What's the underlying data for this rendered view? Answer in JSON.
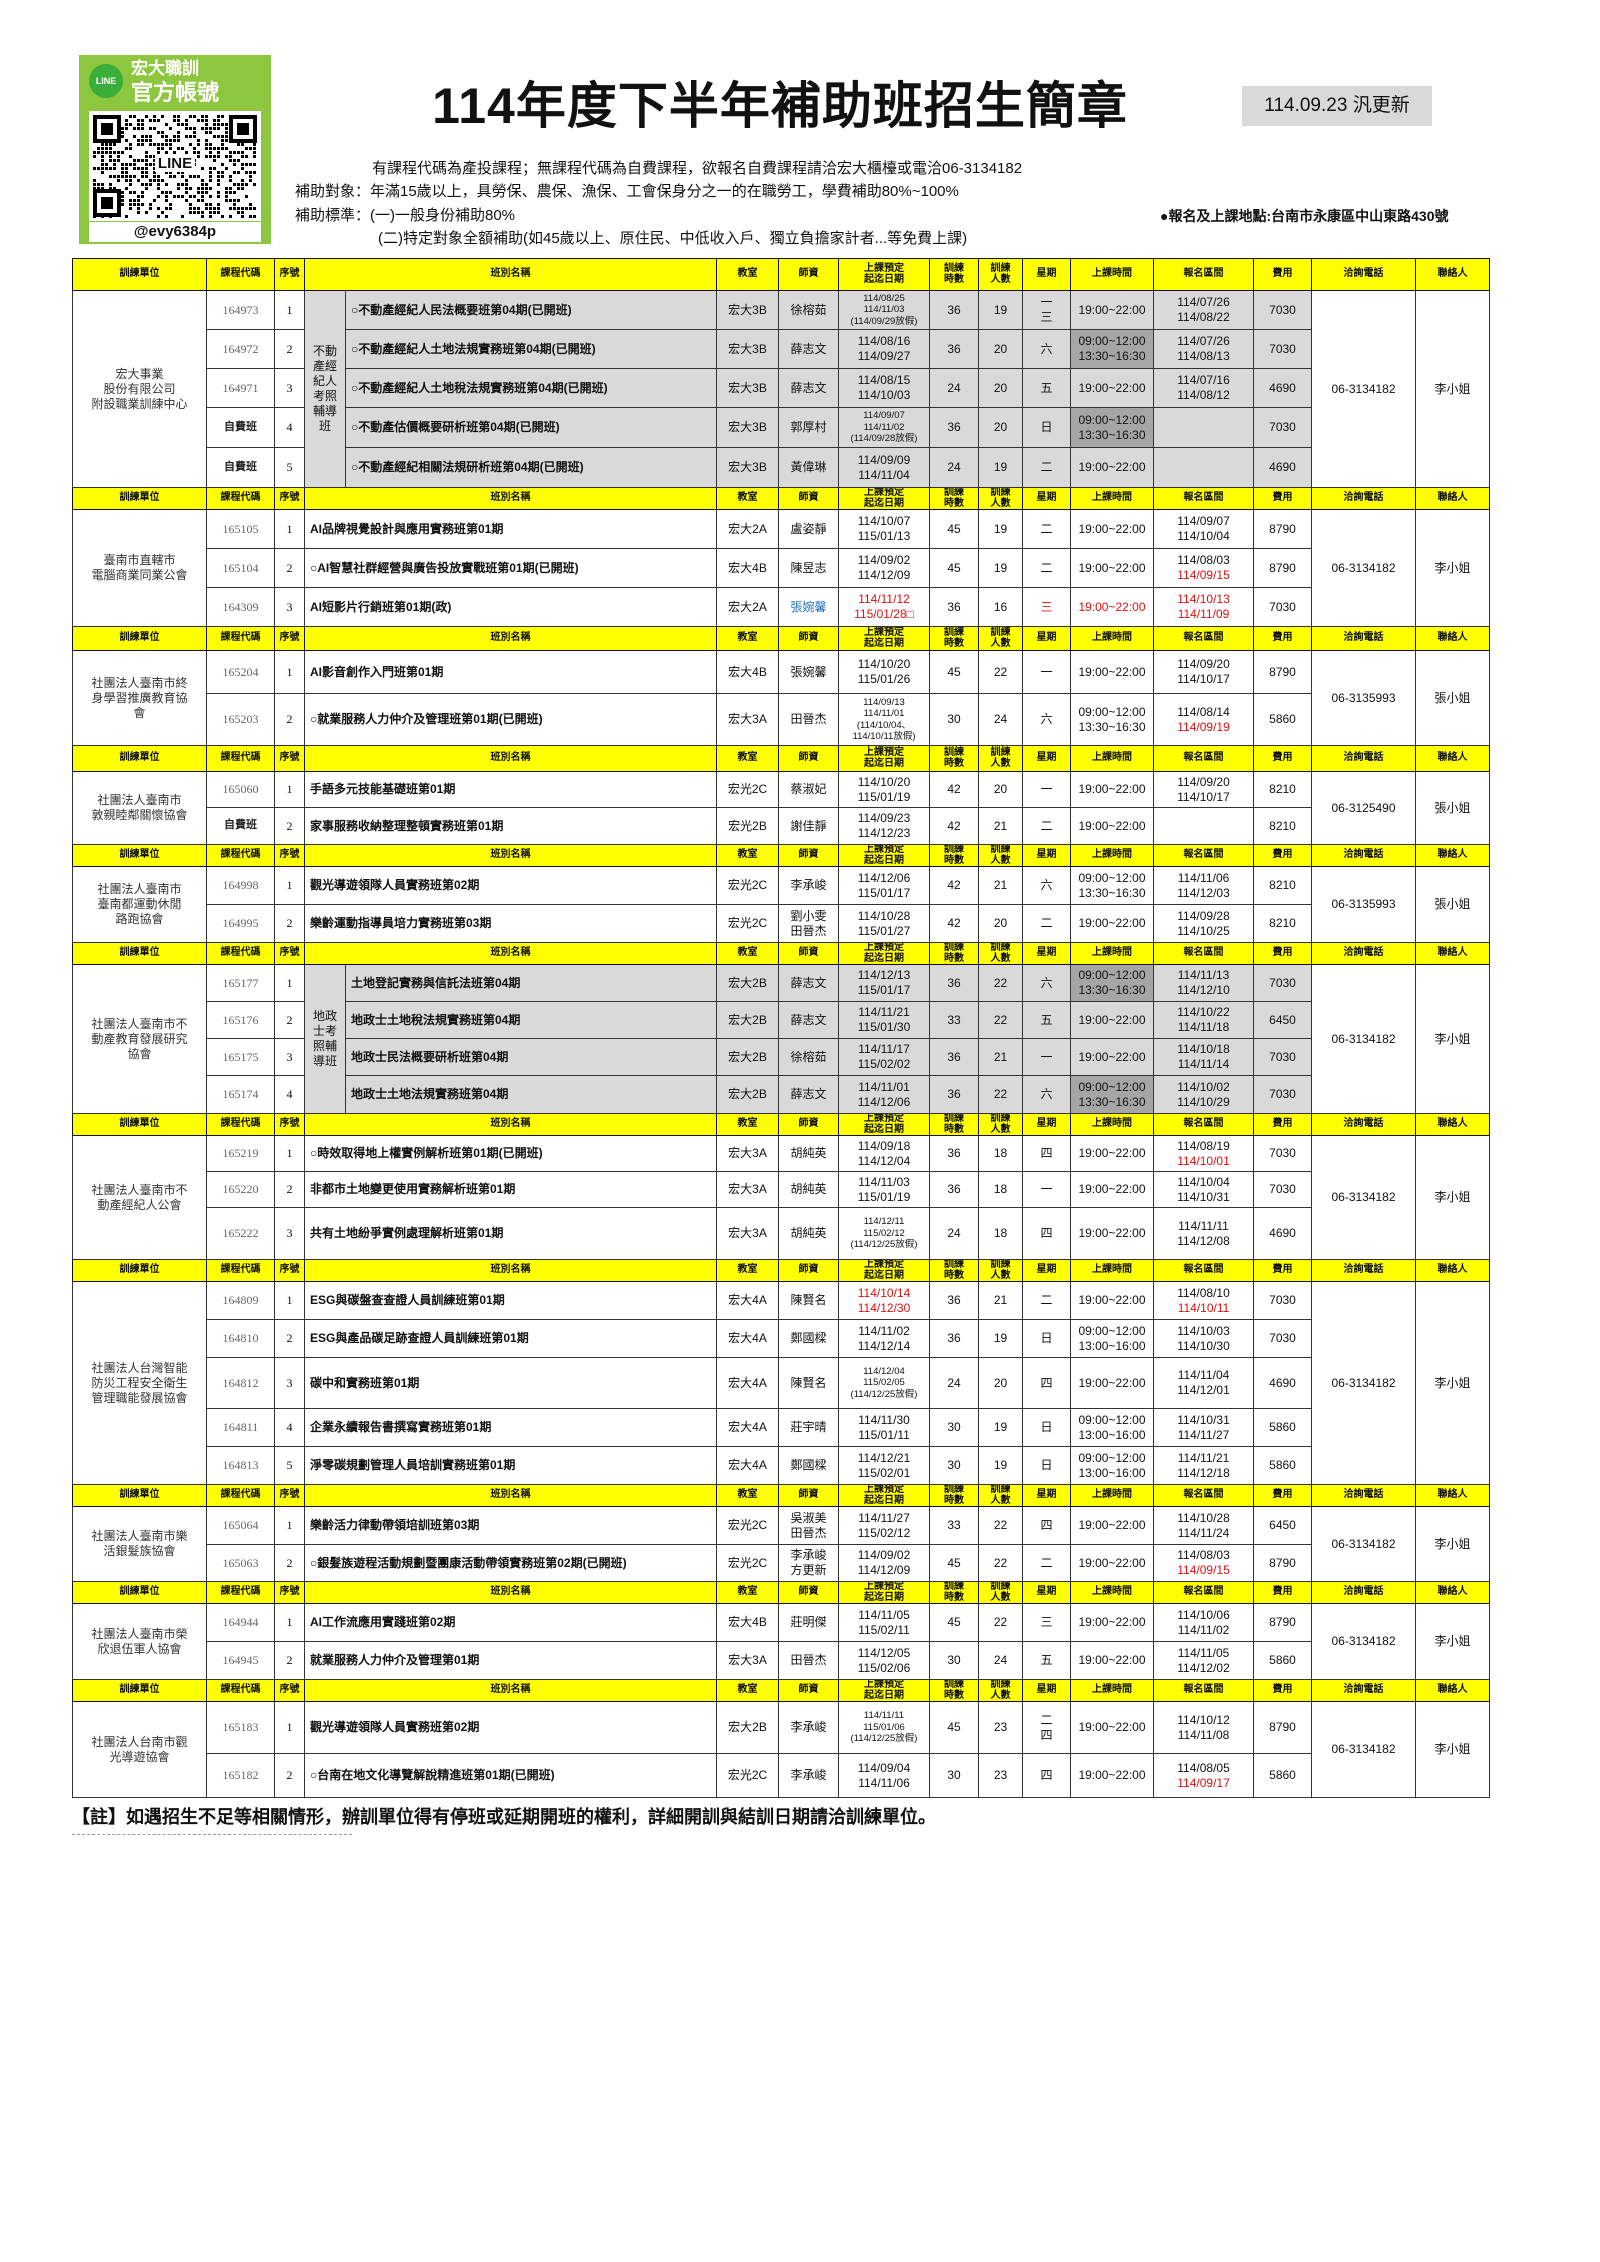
{
  "logo": {
    "line_badge": "LINE",
    "line1": "宏大職訓",
    "line2": "官方帳號",
    "qr_label": "LINE",
    "handle": "@evy6384p",
    "brand_color": "#8dc63f"
  },
  "header": {
    "title": "114年度下半年補助班招生簡章",
    "update": "114.09.23 汎更新",
    "info": [
      "有課程代碼為產投課程；無課程代碼為自費課程，欲報名自費課程請洽宏大櫃檯或電洽06-3134182",
      "補助對象：年滿15歲以上，具勞保、農保、漁保、工會保身分之一的在職勞工，學費補助80%~100%",
      "補助標準：(一)一般身份補助80%",
      "(二)特定對象全額補助(如45歲以上、原住民、中低收入戶、獨立負擔家計者...等免費上課)"
    ],
    "address": "●報名及上課地點:台南市永康區中山東路430號"
  },
  "colors": {
    "header_bg": "#ffff00",
    "shaded": "#d9d9d9",
    "time_shaded": "#a6a6a6",
    "alert": "#e01010",
    "teacher_blue": "#1f6fc0"
  },
  "table": {
    "headers": [
      "訓練單位",
      "課程代碼",
      "序號",
      "班別名稱",
      "教室",
      "師資",
      "上課預定\n起迄日期",
      "訓練\n時數",
      "訓練\n人數",
      "星期",
      "上課時間",
      "報名區間",
      "費用",
      "洽詢電話",
      "聯絡人"
    ],
    "groups": [
      {
        "unit": "宏大事業\n股份有限公司\n附設職業訓練中心",
        "phone": "06-3134182",
        "contact": "李小姐",
        "shaded": true,
        "sub": "不動\n產經\n紀人\n考照\n輔導\n班",
        "rows": [
          {
            "code": "164973",
            "seq": "1",
            "name": "○不動產經紀人民法概要班第04期(已開班)",
            "room": "宏大3B",
            "teacher": "徐榕茹",
            "dates": [
              "114/08/25",
              "114/11/03",
              "(114/09/29放假)"
            ],
            "hours": "36",
            "people": "19",
            "weekday": "一\n三",
            "time": "19:00~22:00",
            "reg": [
              "114/07/26",
              "114/08/22"
            ],
            "fee": "7030"
          },
          {
            "code": "164972",
            "seq": "2",
            "name": "○不動產經紀人土地法規實務班第04期(已開班)",
            "room": "宏大3B",
            "teacher": "薛志文",
            "dates": [
              "114/08/16",
              "114/09/27"
            ],
            "hours": "36",
            "people": "20",
            "weekday": "六",
            "time": "09:00~12:00\n13:30~16:30",
            "reg": [
              "114/07/26",
              "114/08/13"
            ],
            "fee": "7030"
          },
          {
            "code": "164971",
            "seq": "3",
            "name": "○不動產經紀人土地稅法規實務班第04期(已開班)",
            "room": "宏大3B",
            "teacher": "薛志文",
            "dates": [
              "114/08/15",
              "114/10/03"
            ],
            "hours": "24",
            "people": "20",
            "weekday": "五",
            "time": "19:00~22:00",
            "reg": [
              "114/07/16",
              "114/08/12"
            ],
            "fee": "4690"
          },
          {
            "code": "自費班",
            "seq": "4",
            "name": "○不動產估價概要研析班第04期(已開班)",
            "room": "宏大3B",
            "teacher": "郭厚村",
            "dates": [
              "114/09/07",
              "114/11/02",
              "(114/09/28放假)"
            ],
            "hours": "36",
            "people": "20",
            "weekday": "日",
            "time": "09:00~12:00\n13:30~16:30",
            "reg": [],
            "fee": "7030"
          },
          {
            "code": "自費班",
            "seq": "5",
            "name": "○不動產經紀相關法規研析班第04期(已開班)",
            "room": "宏大3B",
            "teacher": "黃偉琳",
            "dates": [
              "114/09/09",
              "114/11/04"
            ],
            "hours": "24",
            "people": "19",
            "weekday": "二",
            "time": "19:00~22:00",
            "reg": [],
            "fee": "4690"
          }
        ]
      },
      {
        "unit": "臺南市直轄市\n電腦商業同業公會",
        "phone": "06-3134182",
        "contact": "李小姐",
        "rows": [
          {
            "code": "165105",
            "seq": "1",
            "name": "AI品牌視覺設計與應用實務班第01期",
            "room": "宏大2A",
            "teacher": "盧姿靜",
            "dates": [
              "114/10/07",
              "115/01/13"
            ],
            "hours": "45",
            "people": "19",
            "weekday": "二",
            "time": "19:00~22:00",
            "reg": [
              "114/09/07",
              "114/10/04"
            ],
            "fee": "8790"
          },
          {
            "code": "165104",
            "seq": "2",
            "name": "○AI智慧社群經營與廣告投放實戰班第01期(已開班)",
            "room": "宏大4B",
            "teacher": "陳昱志",
            "dates": [
              "114/09/02",
              "114/12/09"
            ],
            "hours": "45",
            "people": "19",
            "weekday": "二",
            "time": "19:00~22:00",
            "reg": [
              "114/08/03",
              "114/09/15"
            ],
            "fee": "8790",
            "red": [
              "reg.1"
            ]
          },
          {
            "code": "164309",
            "seq": "3",
            "name": "AI短影片行銷班第01期(政)",
            "room": "宏大2A",
            "teacher": "張婉馨",
            "dates": [
              "114/11/12",
              "115/01/28□"
            ],
            "hours": "36",
            "people": "16",
            "weekday": "三",
            "time": "19:00~22:00",
            "reg": [
              "114/10/13",
              "114/11/09"
            ],
            "fee": "7030",
            "red": [
              "dates",
              "weekday",
              "time",
              "reg"
            ],
            "blue": [
              "teacher"
            ]
          }
        ]
      },
      {
        "unit": "社團法人臺南市終\n身學習推廣教育協\n會",
        "phone": "06-3135993",
        "contact": "張小姐",
        "rows": [
          {
            "code": "165204",
            "seq": "1",
            "name": "AI影音創作入門班第01期",
            "room": "宏大4B",
            "teacher": "張婉馨",
            "dates": [
              "114/10/20",
              "115/01/26"
            ],
            "hours": "45",
            "people": "22",
            "weekday": "一",
            "time": "19:00~22:00",
            "reg": [
              "114/09/20",
              "114/10/17"
            ],
            "fee": "8790"
          },
          {
            "code": "165203",
            "seq": "2",
            "name": "○就業服務人力仲介及管理班第01期(已開班)",
            "room": "宏大3A",
            "teacher": "田晉杰",
            "dates": [
              "114/09/13",
              "114/11/01",
              "(114/10/04、",
              "114/10/11放假)"
            ],
            "hours": "30",
            "people": "24",
            "weekday": "六",
            "time": "09:00~12:00\n13:30~16:30",
            "reg": [
              "114/08/14",
              "114/09/19"
            ],
            "fee": "5860",
            "red": [
              "reg.1"
            ]
          }
        ]
      },
      {
        "unit": "社團法人臺南市\n敦親睦鄰關懷協會",
        "phone": "06-3125490",
        "contact": "張小姐",
        "rows": [
          {
            "code": "165060",
            "seq": "1",
            "name": "手語多元技能基礎班第01期",
            "room": "宏光2C",
            "teacher": "蔡淑妃",
            "dates": [
              "114/10/20",
              "115/01/19"
            ],
            "hours": "42",
            "people": "20",
            "weekday": "一",
            "time": "19:00~22:00",
            "reg": [
              "114/09/20",
              "114/10/17"
            ],
            "fee": "8210"
          },
          {
            "code": "自費班",
            "seq": "2",
            "name": "家事服務收納整理整頓實務班第01期",
            "room": "宏光2B",
            "teacher": "謝佳靜",
            "dates": [
              "114/09/23",
              "114/12/23"
            ],
            "hours": "42",
            "people": "21",
            "weekday": "二",
            "time": "19:00~22:00",
            "reg": [],
            "fee": "8210"
          }
        ]
      },
      {
        "unit": "社團法人臺南市\n臺南都運動休閒\n路跑協會",
        "phone": "06-3135993",
        "contact": "張小姐",
        "rows": [
          {
            "code": "164998",
            "seq": "1",
            "name": "觀光導遊領隊人員實務班第02期",
            "room": "宏光2C",
            "teacher": "李承峻",
            "dates": [
              "114/12/06",
              "115/01/17"
            ],
            "hours": "42",
            "people": "21",
            "weekday": "六",
            "time": "09:00~12:00\n13:30~16:30",
            "reg": [
              "114/11/06",
              "114/12/03"
            ],
            "fee": "8210"
          },
          {
            "code": "164995",
            "seq": "2",
            "name": "樂齡運動指導員培力實務班第03期",
            "room": "宏光2C",
            "teacher": "劉小雯\n田晉杰",
            "dates": [
              "114/10/28",
              "115/01/27"
            ],
            "hours": "42",
            "people": "20",
            "weekday": "二",
            "time": "19:00~22:00",
            "reg": [
              "114/09/28",
              "114/10/25"
            ],
            "fee": "8210"
          }
        ]
      },
      {
        "unit": "社團法人臺南市不\n動產教育發展研究\n協會",
        "phone": "06-3134182",
        "contact": "李小姐",
        "shaded": true,
        "sub": "地政\n士考\n照輔\n導班",
        "rows": [
          {
            "code": "165177",
            "seq": "1",
            "name": "土地登記實務與信託法班第04期",
            "room": "宏大2B",
            "teacher": "薛志文",
            "dates": [
              "114/12/13",
              "115/01/17"
            ],
            "hours": "36",
            "people": "22",
            "weekday": "六",
            "time": "09:00~12:00\n13:30~16:30",
            "reg": [
              "114/11/13",
              "114/12/10"
            ],
            "fee": "7030"
          },
          {
            "code": "165176",
            "seq": "2",
            "name": "地政士土地稅法規實務班第04期",
            "room": "宏大2B",
            "teacher": "薛志文",
            "dates": [
              "114/11/21",
              "115/01/30"
            ],
            "hours": "33",
            "people": "22",
            "weekday": "五",
            "time": "19:00~22:00",
            "reg": [
              "114/10/22",
              "114/11/18"
            ],
            "fee": "6450"
          },
          {
            "code": "165175",
            "seq": "3",
            "name": "地政士民法概要研析班第04期",
            "room": "宏大2B",
            "teacher": "徐榕茹",
            "dates": [
              "114/11/17",
              "115/02/02"
            ],
            "hours": "36",
            "people": "21",
            "weekday": "一",
            "time": "19:00~22:00",
            "reg": [
              "114/10/18",
              "114/11/14"
            ],
            "fee": "7030"
          },
          {
            "code": "165174",
            "seq": "4",
            "name": "地政士土地法規實務班第04期",
            "room": "宏大2B",
            "teacher": "薛志文",
            "dates": [
              "114/11/01",
              "114/12/06"
            ],
            "hours": "36",
            "people": "22",
            "weekday": "六",
            "time": "09:00~12:00\n13:30~16:30",
            "reg": [
              "114/10/02",
              "114/10/29"
            ],
            "fee": "7030"
          }
        ]
      },
      {
        "unit": "社團法人臺南市不\n動產經紀人公會",
        "phone": "06-3134182",
        "contact": "李小姐",
        "rows": [
          {
            "code": "165219",
            "seq": "1",
            "name": "○時效取得地上權實例解析班第01期(已開班)",
            "room": "宏大3A",
            "teacher": "胡純英",
            "dates": [
              "114/09/18",
              "114/12/04"
            ],
            "hours": "36",
            "people": "18",
            "weekday": "四",
            "time": "19:00~22:00",
            "reg": [
              "114/08/19",
              "114/10/01"
            ],
            "fee": "7030",
            "red": [
              "reg.1"
            ]
          },
          {
            "code": "165220",
            "seq": "2",
            "name": "非都市土地變更使用實務解析班第01期",
            "room": "宏大3A",
            "teacher": "胡純英",
            "dates": [
              "114/11/03",
              "115/01/19"
            ],
            "hours": "36",
            "people": "18",
            "weekday": "一",
            "time": "19:00~22:00",
            "reg": [
              "114/10/04",
              "114/10/31"
            ],
            "fee": "7030"
          },
          {
            "code": "165222",
            "seq": "3",
            "name": "共有土地紛爭實例處理解析班第01期",
            "room": "宏大3A",
            "teacher": "胡純英",
            "dates": [
              "114/12/11",
              "115/02/12",
              "(114/12/25放假)"
            ],
            "hours": "24",
            "people": "18",
            "weekday": "四",
            "time": "19:00~22:00",
            "reg": [
              "114/11/11",
              "114/12/08"
            ],
            "fee": "4690"
          }
        ]
      },
      {
        "unit": "社團法人台灣智能\n防災工程安全衛生\n管理職能發展協會",
        "phone": "06-3134182",
        "contact": "李小姐",
        "rows": [
          {
            "code": "164809",
            "seq": "1",
            "name": "ESG與碳盤查查證人員訓練班第01期",
            "room": "宏大4A",
            "teacher": "陳賢名",
            "dates": [
              "114/10/14",
              "114/12/30"
            ],
            "hours": "36",
            "people": "21",
            "weekday": "二",
            "time": "19:00~22:00",
            "reg": [
              "114/08/10",
              "114/10/11"
            ],
            "fee": "7030",
            "red": [
              "dates",
              "reg.1"
            ]
          },
          {
            "code": "164810",
            "seq": "2",
            "name": "ESG與產品碳足跡查證人員訓練班第01期",
            "room": "宏大4A",
            "teacher": "鄭國樑",
            "dates": [
              "114/11/02",
              "114/12/14"
            ],
            "hours": "36",
            "people": "19",
            "weekday": "日",
            "time": "09:00~12:00\n13:00~16:00",
            "reg": [
              "114/10/03",
              "114/10/30"
            ],
            "fee": "7030"
          },
          {
            "code": "164812",
            "seq": "3",
            "name": "碳中和實務班第01期",
            "room": "宏大4A",
            "teacher": "陳賢名",
            "dates": [
              "114/12/04",
              "115/02/05",
              "(114/12/25放假)"
            ],
            "hours": "24",
            "people": "20",
            "weekday": "四",
            "time": "19:00~22:00",
            "reg": [
              "114/11/04",
              "114/12/01"
            ],
            "fee": "4690"
          },
          {
            "code": "164811",
            "seq": "4",
            "name": "企業永續報告書撰寫實務班第01期",
            "room": "宏大4A",
            "teacher": "莊宇晴",
            "dates": [
              "114/11/30",
              "115/01/11"
            ],
            "hours": "30",
            "people": "19",
            "weekday": "日",
            "time": "09:00~12:00\n13:00~16:00",
            "reg": [
              "114/10/31",
              "114/11/27"
            ],
            "fee": "5860"
          },
          {
            "code": "164813",
            "seq": "5",
            "name": "淨零碳規劃管理人員培訓實務班第01期",
            "room": "宏大4A",
            "teacher": "鄭國樑",
            "dates": [
              "114/12/21",
              "115/02/01"
            ],
            "hours": "30",
            "people": "19",
            "weekday": "日",
            "time": "09:00~12:00\n13:00~16:00",
            "reg": [
              "114/11/21",
              "114/12/18"
            ],
            "fee": "5860"
          }
        ]
      },
      {
        "unit": "社團法人臺南市樂\n活銀髮族協會",
        "phone": "06-3134182",
        "contact": "李小姐",
        "rows": [
          {
            "code": "165064",
            "seq": "1",
            "name": "樂齡活力律動帶領培訓班第03期",
            "room": "宏光2C",
            "teacher": "吳淑美\n田晉杰",
            "dates": [
              "114/11/27",
              "115/02/12"
            ],
            "hours": "33",
            "people": "22",
            "weekday": "四",
            "time": "19:00~22:00",
            "reg": [
              "114/10/28",
              "114/11/24"
            ],
            "fee": "6450"
          },
          {
            "code": "165063",
            "seq": "2",
            "name": "○銀髮族遊程活動規劃暨團康活動帶領實務班第02期(已開班)",
            "room": "宏光2C",
            "teacher": "李承峻\n方更新",
            "dates": [
              "114/09/02",
              "114/12/09"
            ],
            "hours": "45",
            "people": "22",
            "weekday": "二",
            "time": "19:00~22:00",
            "reg": [
              "114/08/03",
              "114/09/15"
            ],
            "fee": "8790",
            "red": [
              "reg.1"
            ]
          }
        ]
      },
      {
        "unit": "社團法人臺南市榮\n欣退伍軍人協會",
        "phone": "06-3134182",
        "contact": "李小姐",
        "rows": [
          {
            "code": "164944",
            "seq": "1",
            "name": "AI工作流應用實踐班第02期",
            "room": "宏大4B",
            "teacher": "莊明傑",
            "dates": [
              "114/11/05",
              "115/02/11"
            ],
            "hours": "45",
            "people": "22",
            "weekday": "三",
            "time": "19:00~22:00",
            "reg": [
              "114/10/06",
              "114/11/02"
            ],
            "fee": "8790"
          },
          {
            "code": "164945",
            "seq": "2",
            "name": "就業服務人力仲介及管理第01期",
            "room": "宏大3A",
            "teacher": "田晉杰",
            "dates": [
              "114/12/05",
              "115/02/06"
            ],
            "hours": "30",
            "people": "24",
            "weekday": "五",
            "time": "19:00~22:00",
            "reg": [
              "114/11/05",
              "114/12/02"
            ],
            "fee": "5860"
          }
        ]
      },
      {
        "unit": "社團法人台南市觀\n光導遊協會",
        "phone": "06-3134182",
        "contact": "李小姐",
        "rows": [
          {
            "code": "165183",
            "seq": "1",
            "name": "觀光導遊領隊人員實務班第02期",
            "room": "宏大2B",
            "teacher": "李承峻",
            "dates": [
              "114/11/11",
              "115/01/06",
              "(114/12/25放假)"
            ],
            "hours": "45",
            "people": "23",
            "weekday": "二\n四",
            "time": "19:00~22:00",
            "reg": [
              "114/10/12",
              "114/11/08"
            ],
            "fee": "8790"
          },
          {
            "code": "165182",
            "seq": "2",
            "name": "○台南在地文化導覽解說精進班第01期(已開班)",
            "room": "宏光2C",
            "teacher": "李承峻",
            "dates": [
              "114/09/04",
              "114/11/06"
            ],
            "hours": "30",
            "people": "23",
            "weekday": "四",
            "time": "19:00~22:00",
            "reg": [
              "114/08/05",
              "114/09/17"
            ],
            "fee": "5860",
            "red": [
              "reg.1"
            ]
          }
        ]
      }
    ]
  },
  "footer": {
    "note": "【註】如遇招生不足等相關情形，辦訓單位得有停班或延期開班的權利，詳細開訓與結訓日期請洽訓練單位。"
  }
}
